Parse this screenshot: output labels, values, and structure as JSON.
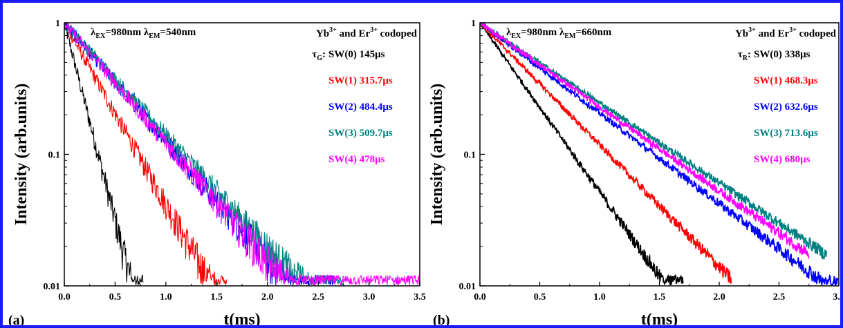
{
  "chart_data": [
    {
      "type": "line",
      "panel_label": "(a)",
      "xlabel": "t(ms)",
      "ylabel": "Intensity (arb.units)",
      "xlim": [
        0,
        3.5
      ],
      "ylim": [
        0.01,
        1
      ],
      "yscale": "log",
      "x_ticks": [
        "0.0",
        "0.5",
        "1.0",
        "1.5",
        "2.0",
        "2.5",
        "3.0",
        "3.5"
      ],
      "y_ticks": [
        "1",
        "0.1",
        "0.01"
      ],
      "annotation_left": "λEX=980nm λEM=540nm",
      "annotation_right": "Yb3+ and Er3+ codoped",
      "tau_label": "τG:",
      "series": [
        {
          "name": "SW(0) 145μs",
          "color": "#000000",
          "tau_ms": 0.145,
          "x_end": 0.78
        },
        {
          "name": "SW(1) 315.7μs",
          "color": "#ff0000",
          "tau_ms": 0.3157,
          "x_end": 1.6
        },
        {
          "name": "SW(2) 484.4μs",
          "color": "#0000ff",
          "tau_ms": 0.4844,
          "x_end": 2.65
        },
        {
          "name": "SW(3) 509.7μs",
          "color": "#008080",
          "tau_ms": 0.5097,
          "x_end": 2.75
        },
        {
          "name": "SW(4) 478μs",
          "color": "#ff00ff",
          "tau_ms": 0.478,
          "x_end": 3.5
        }
      ]
    },
    {
      "type": "line",
      "panel_label": "(b)",
      "xlabel": "t(ms)",
      "ylabel": "Intensity (arb.units)",
      "xlim": [
        0,
        3.0
      ],
      "ylim": [
        0.01,
        1
      ],
      "yscale": "log",
      "x_ticks": [
        "0.0",
        "0.5",
        "1.0",
        "1.5",
        "2.0",
        "2.5",
        "3.0"
      ],
      "y_ticks": [
        "1",
        "0.1",
        "0.01"
      ],
      "annotation_left": "λEX=980nm λEM=660nm",
      "annotation_right": "Yb3+ and Er3+ codoped",
      "tau_label": "τR:",
      "series": [
        {
          "name": "SW(0) 338μs",
          "color": "#000000",
          "tau_ms": 0.338,
          "x_end": 1.7
        },
        {
          "name": "SW(1) 468.3μs",
          "color": "#ff0000",
          "tau_ms": 0.4683,
          "x_end": 2.1
        },
        {
          "name": "SW(2) 632.6μs",
          "color": "#0000ff",
          "tau_ms": 0.6326,
          "x_end": 3.0
        },
        {
          "name": "SW(3) 713.6μs",
          "color": "#008080",
          "tau_ms": 0.7136,
          "x_end": 2.9
        },
        {
          "name": "SW(4) 680μs",
          "color": "#ff00ff",
          "tau_ms": 0.68,
          "x_end": 2.75
        }
      ]
    }
  ]
}
